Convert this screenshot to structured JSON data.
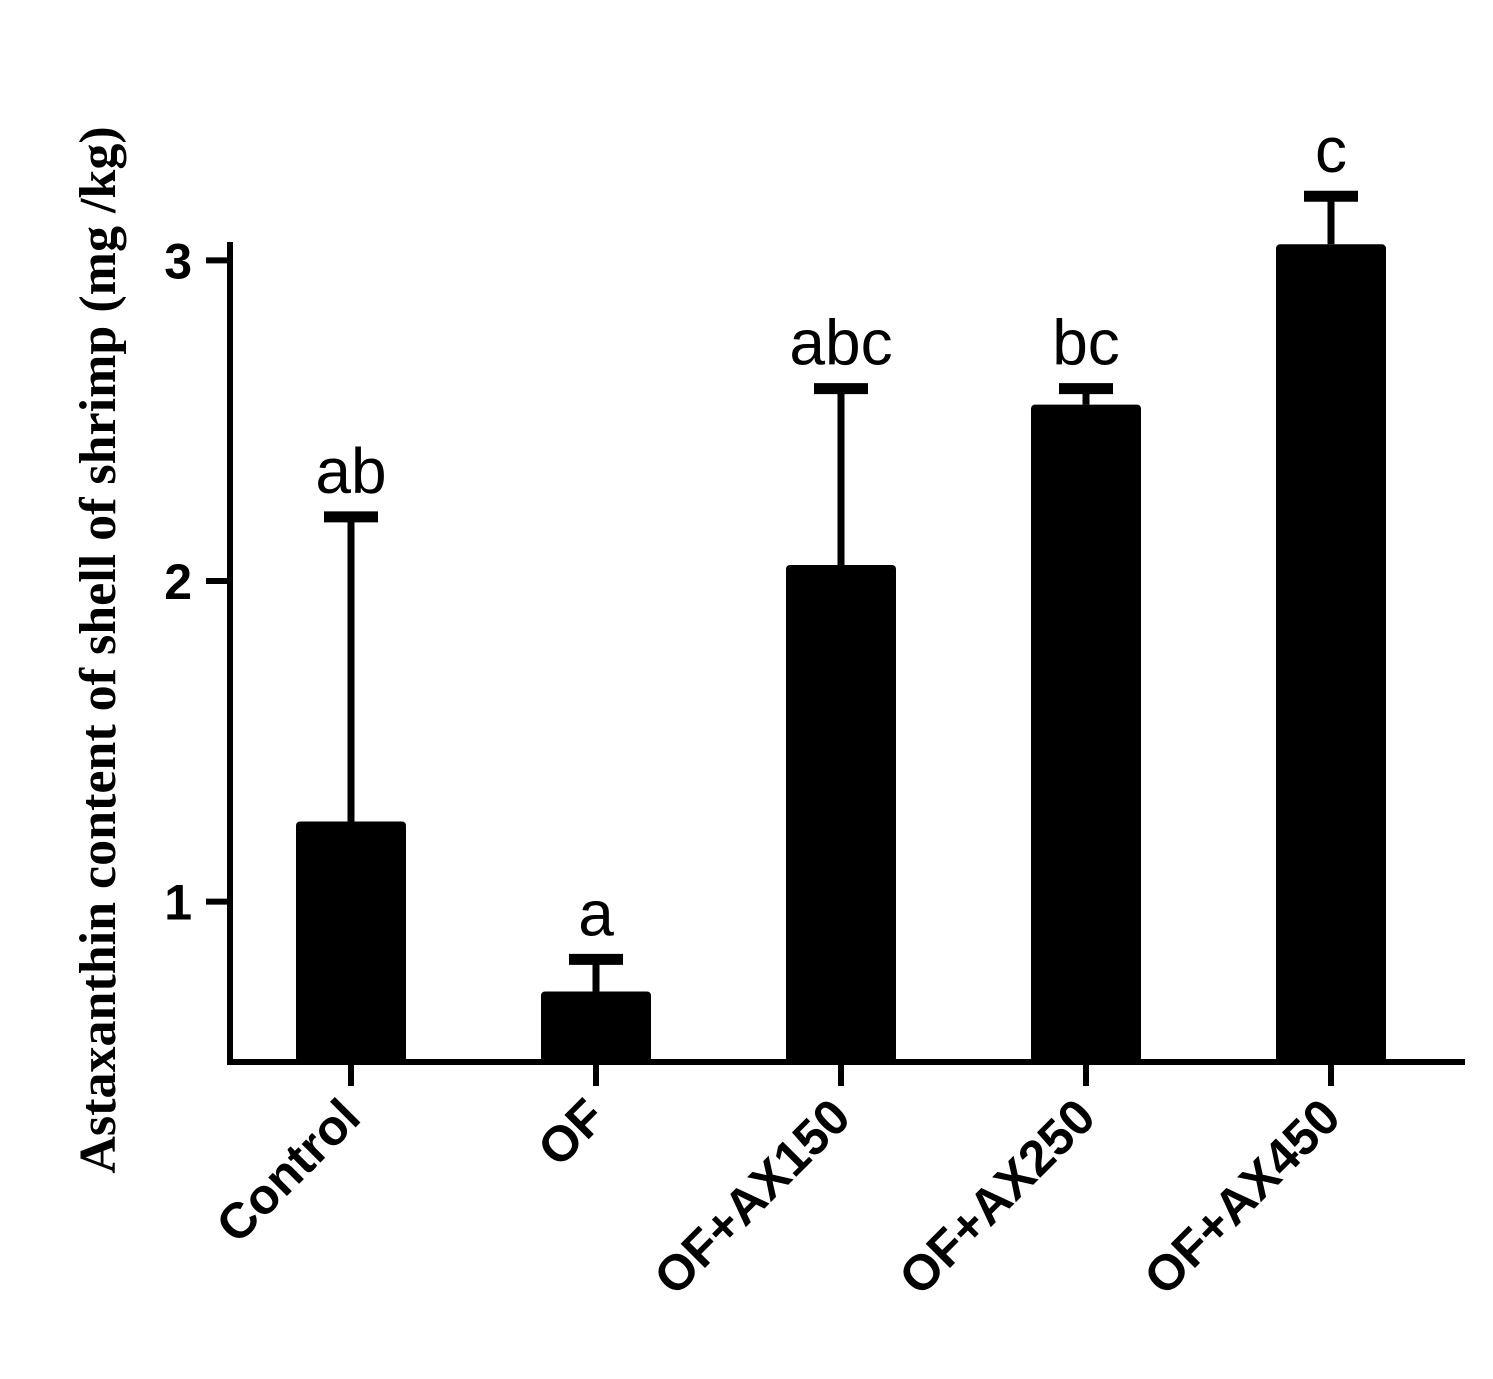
{
  "chart_data": {
    "type": "bar",
    "title": "",
    "xlabel": "",
    "ylabel": "Astaxanthin content of shell of shrimp (mg /kg)",
    "categories": [
      "Control",
      "OF",
      "OF+AX150",
      "OF+AX250",
      "OF+AX450"
    ],
    "values": [
      1.25,
      0.72,
      2.05,
      2.55,
      3.05
    ],
    "error": [
      0.95,
      0.1,
      0.55,
      0.05,
      0.15
    ],
    "significance": [
      "ab",
      "a",
      "abc",
      "bc",
      "c"
    ],
    "yticks": [
      1,
      2,
      3
    ],
    "ylim": [
      0.5,
      3.5
    ],
    "grid": false,
    "bar_color": "#000000"
  }
}
